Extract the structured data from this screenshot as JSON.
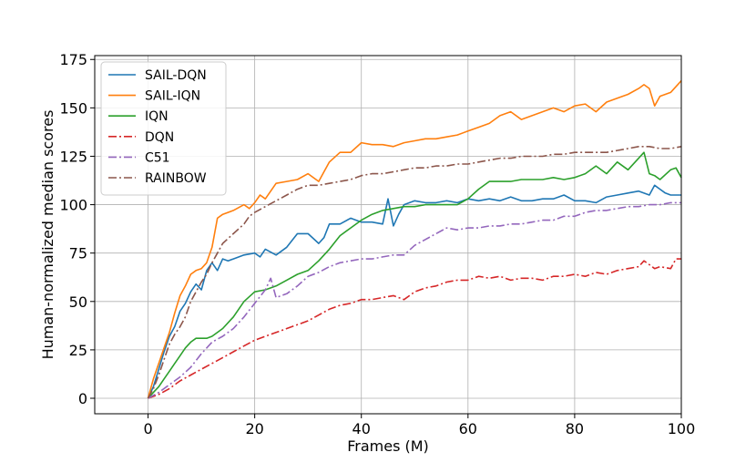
{
  "chart_data": {
    "type": "line",
    "xlabel": "Frames (M)",
    "ylabel": "Human-normalized median scores",
    "xlim": [
      -10,
      100
    ],
    "ylim": [
      -8,
      177
    ],
    "xticks": [
      0,
      20,
      40,
      60,
      80,
      100
    ],
    "yticks": [
      0,
      25,
      50,
      75,
      100,
      125,
      150,
      175
    ],
    "grid": true,
    "legend_position": "top-left",
    "series": [
      {
        "name": "SAIL-DQN",
        "color": "#1f77b4",
        "dash": "solid",
        "x": [
          0,
          1,
          2,
          3,
          4,
          5,
          6,
          7,
          8,
          9,
          10,
          11,
          12,
          13,
          14,
          15,
          16,
          18,
          20,
          21,
          22,
          24,
          26,
          28,
          30,
          32,
          33,
          34,
          36,
          38,
          40,
          42,
          44,
          45,
          46,
          47,
          48,
          50,
          52,
          54,
          56,
          58,
          60,
          62,
          64,
          66,
          68,
          70,
          72,
          74,
          76,
          78,
          80,
          82,
          84,
          86,
          88,
          90,
          92,
          94,
          95,
          96,
          97,
          98,
          100
        ],
        "y": [
          0,
          6,
          15,
          24,
          32,
          37,
          45,
          49,
          55,
          59,
          56,
          66,
          70,
          66,
          72,
          71,
          72,
          74,
          75,
          73,
          77,
          74,
          78,
          85,
          85,
          80,
          83,
          90,
          90,
          93,
          91,
          91,
          90,
          103,
          89,
          95,
          100,
          102,
          101,
          101,
          102,
          101,
          103,
          102,
          103,
          102,
          104,
          102,
          102,
          103,
          103,
          105,
          102,
          102,
          101,
          104,
          105,
          106,
          107,
          105,
          110,
          108,
          106,
          105,
          105
        ]
      },
      {
        "name": "SAIL-IQN",
        "color": "#ff7f0e",
        "dash": "solid",
        "x": [
          0,
          1,
          2,
          3,
          4,
          5,
          6,
          7,
          8,
          9,
          10,
          11,
          12,
          13,
          14,
          16,
          18,
          19,
          20,
          21,
          22,
          24,
          26,
          28,
          30,
          32,
          33,
          34,
          36,
          38,
          40,
          42,
          44,
          46,
          48,
          50,
          52,
          54,
          56,
          58,
          60,
          62,
          64,
          66,
          68,
          70,
          72,
          74,
          76,
          78,
          80,
          82,
          84,
          86,
          88,
          90,
          92,
          93,
          94,
          95,
          96,
          98,
          100
        ],
        "y": [
          0,
          10,
          18,
          26,
          34,
          44,
          53,
          58,
          64,
          66,
          67,
          70,
          78,
          93,
          95,
          97,
          100,
          98,
          101,
          105,
          103,
          111,
          112,
          113,
          116,
          112,
          117,
          122,
          127,
          127,
          132,
          131,
          131,
          130,
          132,
          133,
          134,
          134,
          135,
          136,
          138,
          140,
          142,
          146,
          148,
          144,
          146,
          148,
          150,
          148,
          151,
          152,
          148,
          153,
          155,
          157,
          160,
          162,
          160,
          151,
          156,
          158,
          164
        ]
      },
      {
        "name": "IQN",
        "color": "#2ca02c",
        "dash": "solid",
        "x": [
          0,
          1,
          2,
          3,
          4,
          5,
          6,
          7,
          8,
          9,
          10,
          11,
          12,
          14,
          16,
          18,
          20,
          22,
          24,
          26,
          28,
          30,
          32,
          34,
          36,
          38,
          40,
          42,
          44,
          46,
          48,
          50,
          52,
          54,
          56,
          58,
          60,
          62,
          64,
          66,
          68,
          70,
          72,
          74,
          76,
          78,
          80,
          82,
          84,
          86,
          88,
          90,
          92,
          93,
          94,
          95,
          96,
          98,
          99,
          100
        ],
        "y": [
          0,
          3,
          6,
          10,
          14,
          18,
          22,
          26,
          29,
          31,
          31,
          31,
          32,
          36,
          42,
          50,
          55,
          56,
          58,
          61,
          64,
          66,
          71,
          77,
          84,
          88,
          92,
          95,
          97,
          98,
          99,
          99,
          100,
          100,
          100,
          100,
          103,
          108,
          112,
          112,
          112,
          113,
          113,
          113,
          114,
          113,
          114,
          116,
          120,
          116,
          122,
          118,
          124,
          127,
          116,
          115,
          113,
          118,
          119,
          114
        ]
      },
      {
        "name": "DQN",
        "color": "#d62728",
        "dash": "dashdot",
        "x": [
          0,
          2,
          4,
          6,
          8,
          10,
          12,
          14,
          16,
          18,
          20,
          22,
          24,
          26,
          28,
          30,
          32,
          34,
          36,
          38,
          40,
          42,
          44,
          46,
          48,
          50,
          52,
          54,
          56,
          58,
          60,
          62,
          64,
          66,
          68,
          70,
          72,
          74,
          76,
          78,
          80,
          82,
          84,
          86,
          88,
          90,
          92,
          93,
          94,
          95,
          96,
          98,
          99,
          100
        ],
        "y": [
          0,
          2,
          5,
          9,
          12,
          15,
          18,
          21,
          24,
          27,
          30,
          32,
          34,
          36,
          38,
          40,
          43,
          46,
          48,
          49,
          51,
          51,
          52,
          53,
          51,
          55,
          57,
          58,
          60,
          61,
          61,
          63,
          62,
          63,
          61,
          62,
          62,
          61,
          63,
          63,
          64,
          63,
          65,
          64,
          66,
          67,
          68,
          71,
          69,
          67,
          68,
          67,
          72,
          72
        ]
      },
      {
        "name": "C51",
        "color": "#9467bd",
        "dash": "dashdot",
        "x": [
          0,
          2,
          4,
          6,
          8,
          10,
          12,
          14,
          16,
          18,
          20,
          22,
          23,
          24,
          26,
          28,
          30,
          32,
          34,
          36,
          38,
          40,
          42,
          44,
          46,
          48,
          50,
          52,
          54,
          56,
          58,
          60,
          62,
          64,
          66,
          68,
          70,
          72,
          74,
          76,
          78,
          80,
          82,
          84,
          86,
          88,
          90,
          92,
          94,
          96,
          98,
          100
        ],
        "y": [
          0,
          3,
          7,
          11,
          16,
          23,
          29,
          32,
          36,
          42,
          49,
          56,
          62,
          52,
          54,
          58,
          63,
          65,
          68,
          70,
          71,
          72,
          72,
          73,
          74,
          74,
          79,
          82,
          85,
          88,
          87,
          88,
          88,
          89,
          89,
          90,
          90,
          91,
          92,
          92,
          94,
          94,
          96,
          97,
          97,
          98,
          99,
          99,
          100,
          100,
          101,
          101
        ]
      },
      {
        "name": "RAINBOW",
        "color": "#8c564b",
        "dash": "dashdot",
        "x": [
          0,
          1,
          2,
          3,
          4,
          5,
          6,
          7,
          8,
          9,
          10,
          11,
          12,
          13,
          14,
          16,
          18,
          19,
          20,
          22,
          24,
          26,
          28,
          30,
          32,
          34,
          36,
          38,
          40,
          42,
          44,
          46,
          48,
          50,
          52,
          54,
          56,
          58,
          60,
          62,
          64,
          66,
          68,
          70,
          72,
          74,
          76,
          78,
          80,
          82,
          84,
          86,
          88,
          90,
          92,
          94,
          96,
          98,
          100
        ],
        "y": [
          0,
          5,
          12,
          20,
          28,
          33,
          37,
          42,
          50,
          55,
          60,
          64,
          70,
          75,
          80,
          85,
          90,
          94,
          96,
          99,
          102,
          105,
          108,
          110,
          110,
          111,
          112,
          113,
          115,
          116,
          116,
          117,
          118,
          119,
          119,
          120,
          120,
          121,
          121,
          122,
          123,
          124,
          124,
          125,
          125,
          125,
          126,
          126,
          127,
          127,
          127,
          127,
          128,
          129,
          130,
          130,
          129,
          129,
          130
        ]
      }
    ]
  }
}
